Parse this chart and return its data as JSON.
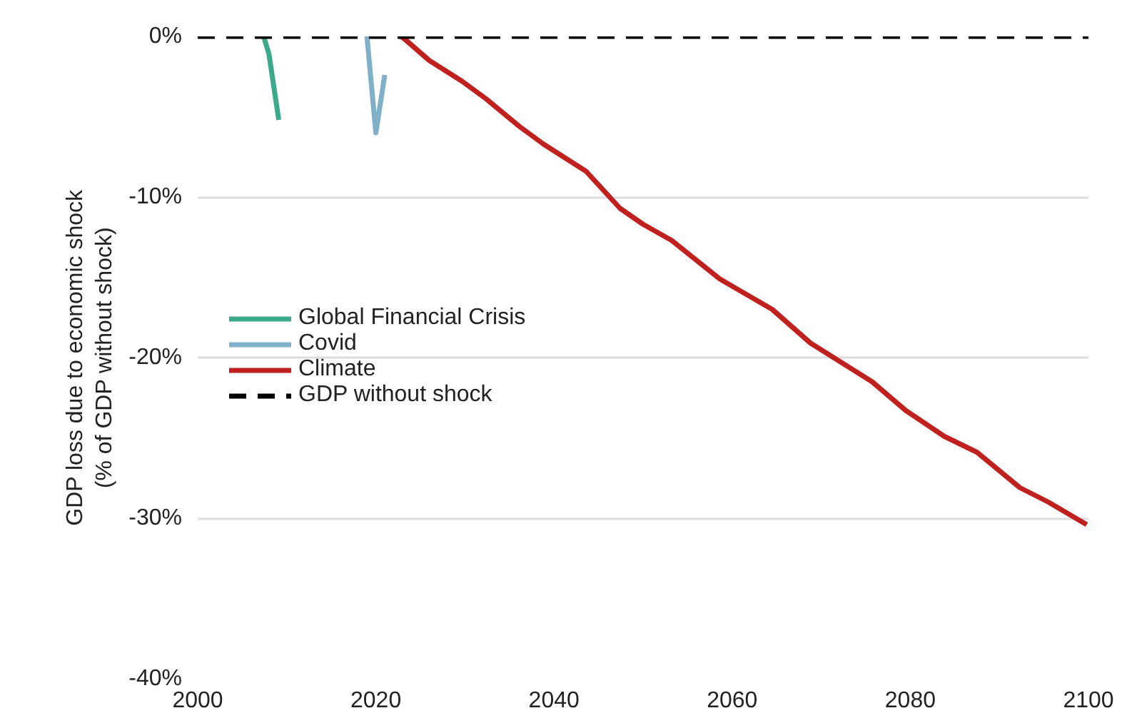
{
  "chart_data": {
    "type": "line",
    "ylabel": "GDP loss due to economic shock\n(% of GDP without shock)",
    "xlim": [
      2000,
      2100
    ],
    "xticks": [
      2000,
      2020,
      2040,
      2060,
      2080,
      2100
    ],
    "ylim": [
      -40,
      0
    ],
    "yticks": [
      {
        "value": 0,
        "label": "0%"
      },
      {
        "value": -10,
        "label": "-10%"
      },
      {
        "value": -20,
        "label": "-20%"
      },
      {
        "value": -30,
        "label": "-30%"
      },
      {
        "value": -40,
        "label": "-40%"
      }
    ],
    "grid": "y",
    "legend": "left",
    "series": [
      {
        "name": "Global Financial Crisis",
        "color": "#3aaa8a",
        "x": [
          2007.4,
          2008,
          2009.1
        ],
        "values": [
          0,
          -1.1,
          -5.2
        ]
      },
      {
        "name": "Covid",
        "color": "#7fb0c8",
        "x": [
          2019,
          2020,
          2021
        ],
        "values": [
          0,
          -6.0,
          -2.4
        ]
      },
      {
        "name": "Climate",
        "color": "#c0201e",
        "x": [
          2022.8,
          2023.3,
          2026,
          2029.7,
          2032.4,
          2036.1,
          2038.8,
          2043.6,
          2047.4,
          2050,
          2053.2,
          2058.6,
          2064.5,
          2068.8,
          2075.7,
          2079.5,
          2083.8,
          2087.5,
          2092.3,
          2095.5,
          2099.8
        ],
        "values": [
          0,
          -0.2,
          -1.5,
          -2.8,
          -3.9,
          -5.6,
          -6.7,
          -8.4,
          -10.7,
          -11.7,
          -12.7,
          -15.1,
          -17.0,
          -19.1,
          -21.5,
          -23.3,
          -24.9,
          -25.9,
          -28.1,
          -29.0,
          -30.4
        ]
      },
      {
        "name": "GDP without shock",
        "color": "#000000",
        "line_style": "dashed",
        "x": [
          2000,
          2100
        ],
        "values": [
          0,
          0
        ]
      }
    ]
  }
}
